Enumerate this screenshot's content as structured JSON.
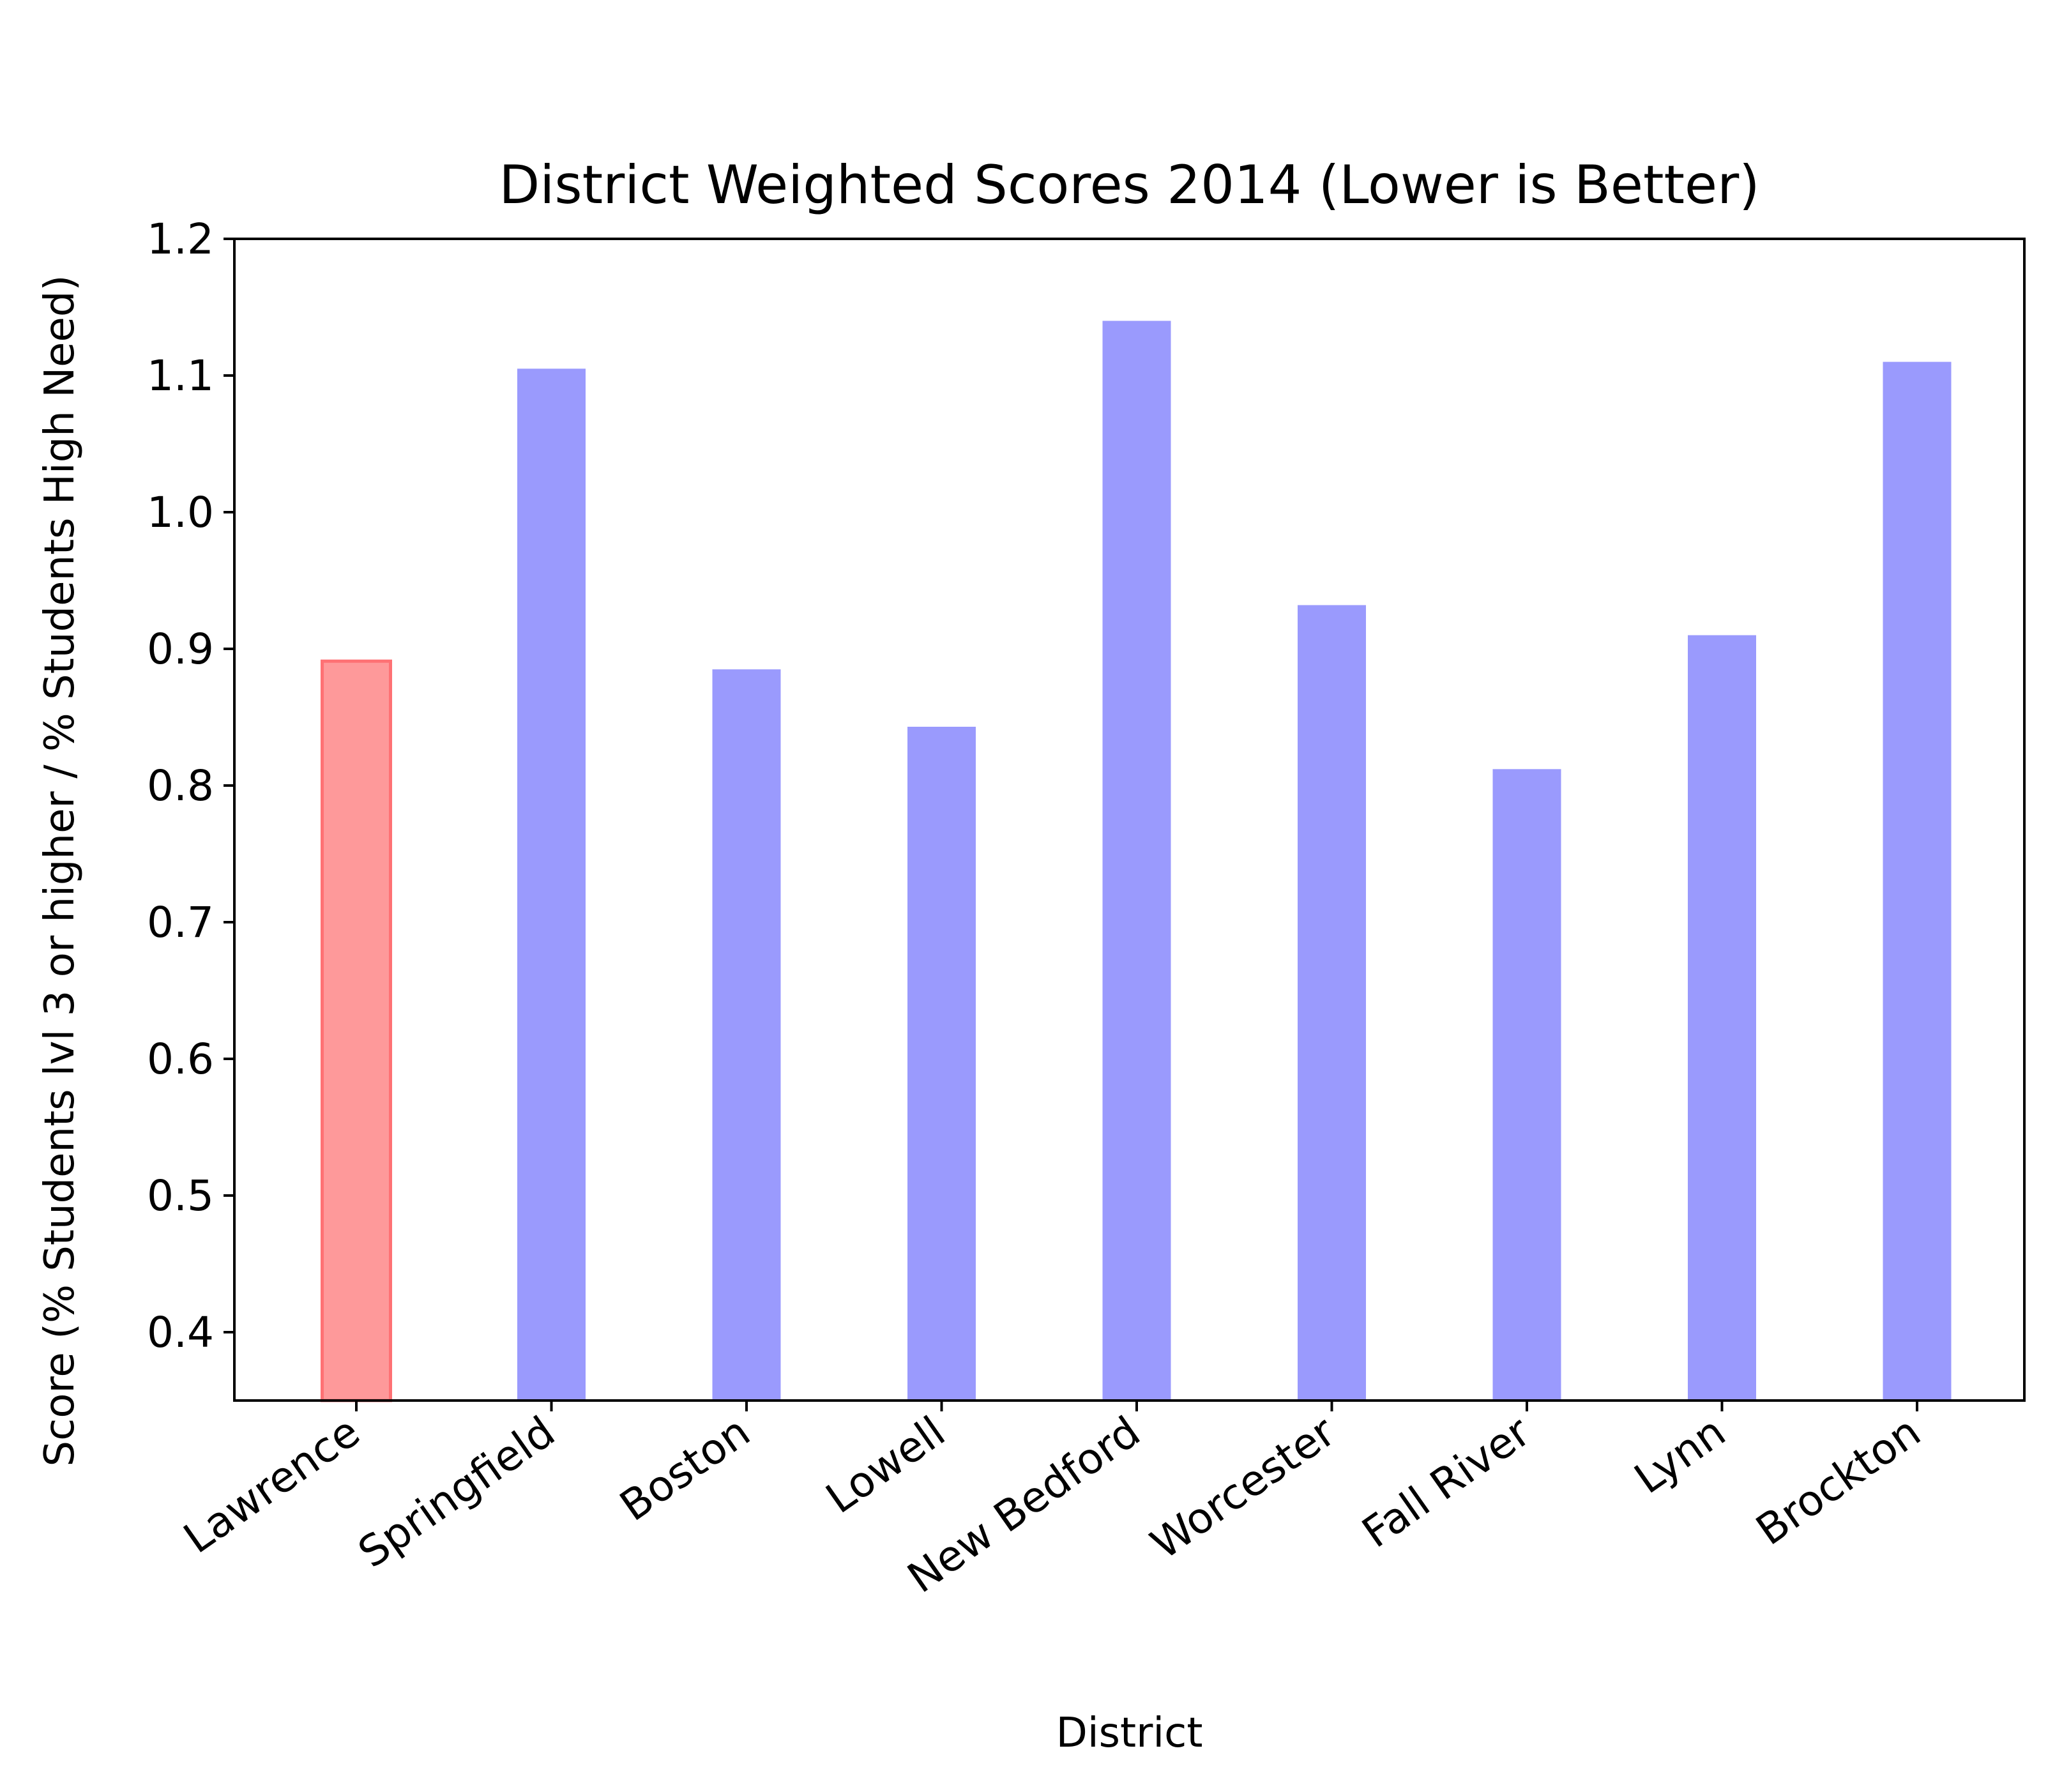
{
  "chart_data": {
    "type": "bar",
    "title": "District Weighted Scores 2014 (Lower is Better)",
    "xlabel": "District",
    "ylabel": "Score (% Students lvl 3 or higher / % Students High Need)",
    "categories": [
      "Lawrence",
      "Springfield",
      "Boston",
      "Lowell",
      "New Bedford",
      "Worcester",
      "Fall River",
      "Lynn",
      "Brockton"
    ],
    "values": [
      0.891,
      1.105,
      0.885,
      0.843,
      1.14,
      0.932,
      0.812,
      0.91,
      1.11
    ],
    "highlight_index": 0,
    "ylim": [
      0.35,
      1.2
    ],
    "yticks": [
      "0.4",
      "0.5",
      "0.6",
      "0.7",
      "0.8",
      "0.9",
      "1.0",
      "1.1",
      "1.2"
    ],
    "grid": false,
    "colors": {
      "bar": "#9a9afd",
      "highlight_fill": "#fe999a",
      "highlight_edge": "#fe7174",
      "axis": "#000000"
    }
  }
}
